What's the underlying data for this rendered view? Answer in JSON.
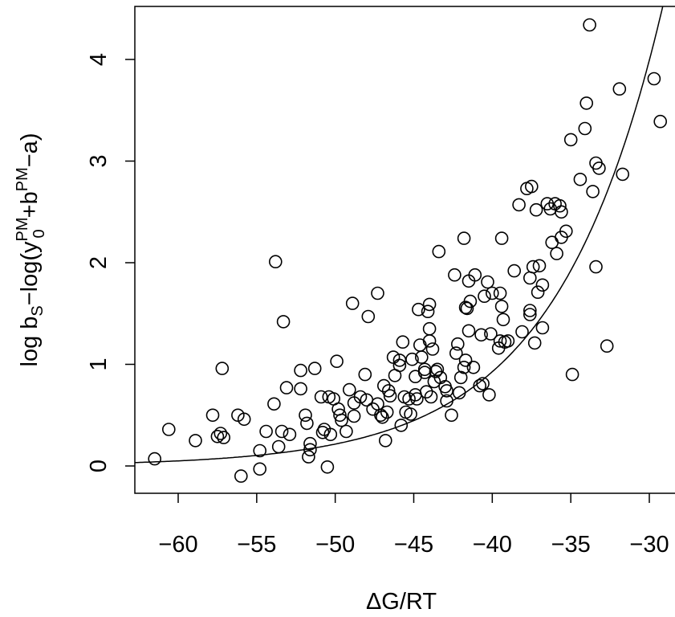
{
  "chart_data": {
    "type": "scatter",
    "xlabel": "ΔG/RT",
    "ylabel": {
      "base": "log b",
      "sub_s": "S",
      "minus": "−log(y",
      "sup_pm1": "PM",
      "sub_0": "0",
      "plus": "+b",
      "sup_pm2": "PM",
      "tail": "−a)"
    },
    "xlim": [
      -63.2,
      -28.1
    ],
    "ylim": [
      -0.27,
      4.5
    ],
    "x_ticks": [
      {
        "value": -60,
        "label": "−60"
      },
      {
        "value": -55,
        "label": "−55"
      },
      {
        "value": -50,
        "label": "−50"
      },
      {
        "value": -45,
        "label": "−45"
      },
      {
        "value": -40,
        "label": "−40"
      },
      {
        "value": -35,
        "label": "−35"
      },
      {
        "value": -30,
        "label": "−30"
      }
    ],
    "y_ticks": [
      {
        "value": 0,
        "label": "0"
      },
      {
        "value": 1,
        "label": "1"
      },
      {
        "value": 2,
        "label": "2"
      },
      {
        "value": 3,
        "label": "3"
      },
      {
        "value": 4,
        "label": "4"
      }
    ],
    "grid": false,
    "fit": {
      "type": "exponential",
      "a": 0.05,
      "b": 0.146,
      "x0": -60
    },
    "points": [
      [
        -61.5,
        0.07
      ],
      [
        -60.6,
        0.36
      ],
      [
        -58.9,
        0.25
      ],
      [
        -57.8,
        0.5
      ],
      [
        -57.5,
        0.29
      ],
      [
        -57.3,
        0.32
      ],
      [
        -57.2,
        0.96
      ],
      [
        -57.1,
        0.28
      ],
      [
        -56.2,
        0.5
      ],
      [
        -56.0,
        -0.1
      ],
      [
        -55.8,
        0.46
      ],
      [
        -54.8,
        0.15
      ],
      [
        -54.8,
        -0.03
      ],
      [
        -54.4,
        0.34
      ],
      [
        -53.9,
        0.61
      ],
      [
        -53.8,
        2.01
      ],
      [
        -53.6,
        0.19
      ],
      [
        -53.4,
        0.34
      ],
      [
        -53.3,
        1.42
      ],
      [
        -53.1,
        0.77
      ],
      [
        -52.9,
        0.31
      ],
      [
        -52.2,
        0.94
      ],
      [
        -52.2,
        0.76
      ],
      [
        -51.9,
        0.5
      ],
      [
        -51.8,
        0.42
      ],
      [
        -51.7,
        0.09
      ],
      [
        -51.6,
        0.22
      ],
      [
        -51.6,
        0.16
      ],
      [
        -51.3,
        0.96
      ],
      [
        -50.9,
        0.68
      ],
      [
        -50.8,
        0.33
      ],
      [
        -50.7,
        0.36
      ],
      [
        -50.5,
        -0.01
      ],
      [
        -50.4,
        0.68
      ],
      [
        -50.3,
        0.31
      ],
      [
        -50.1,
        0.66
      ],
      [
        -49.9,
        1.03
      ],
      [
        -49.8,
        0.56
      ],
      [
        -49.7,
        0.5
      ],
      [
        -49.6,
        0.45
      ],
      [
        -49.3,
        0.34
      ],
      [
        -49.1,
        0.75
      ],
      [
        -48.9,
        1.6
      ],
      [
        -48.8,
        0.49
      ],
      [
        -48.8,
        0.62
      ],
      [
        -48.4,
        0.68
      ],
      [
        -48.1,
        0.9
      ],
      [
        -48.0,
        0.65
      ],
      [
        -47.9,
        1.47
      ],
      [
        -47.6,
        0.56
      ],
      [
        -47.3,
        1.7
      ],
      [
        -47.3,
        0.61
      ],
      [
        -47.1,
        0.5
      ],
      [
        -47.0,
        0.48
      ],
      [
        -46.9,
        0.79
      ],
      [
        -46.8,
        0.25
      ],
      [
        -46.7,
        0.53
      ],
      [
        -46.6,
        0.74
      ],
      [
        -46.5,
        0.69
      ],
      [
        -46.3,
        1.07
      ],
      [
        -46.2,
        0.89
      ],
      [
        -45.9,
        1.04
      ],
      [
        -45.9,
        0.99
      ],
      [
        -45.8,
        0.4
      ],
      [
        -45.7,
        1.22
      ],
      [
        -45.6,
        0.68
      ],
      [
        -45.5,
        0.53
      ],
      [
        -45.3,
        0.66
      ],
      [
        -45.2,
        0.51
      ],
      [
        -45.1,
        1.05
      ],
      [
        -44.9,
        0.88
      ],
      [
        -44.9,
        0.7
      ],
      [
        -44.8,
        0.66
      ],
      [
        -44.7,
        1.54
      ],
      [
        -44.6,
        1.19
      ],
      [
        -44.5,
        1.07
      ],
      [
        -44.3,
        0.92
      ],
      [
        -44.3,
        0.95
      ],
      [
        -44.2,
        0.73
      ],
      [
        -44.1,
        1.52
      ],
      [
        -44.0,
        1.59
      ],
      [
        -44.0,
        1.35
      ],
      [
        -44.0,
        1.23
      ],
      [
        -43.9,
        0.68
      ],
      [
        -43.8,
        1.15
      ],
      [
        -43.7,
        0.83
      ],
      [
        -43.6,
        0.93
      ],
      [
        -43.5,
        0.95
      ],
      [
        -43.4,
        2.11
      ],
      [
        -43.3,
        0.87
      ],
      [
        -43.0,
        0.78
      ],
      [
        -42.9,
        0.74
      ],
      [
        -42.9,
        0.64
      ],
      [
        -42.6,
        0.5
      ],
      [
        -42.4,
        1.88
      ],
      [
        -42.3,
        1.11
      ],
      [
        -42.2,
        1.2
      ],
      [
        -42.1,
        0.72
      ],
      [
        -42.0,
        0.87
      ],
      [
        -41.8,
        2.24
      ],
      [
        -41.8,
        0.97
      ],
      [
        -41.7,
        1.56
      ],
      [
        -41.7,
        1.04
      ],
      [
        -41.6,
        1.55
      ],
      [
        -41.5,
        1.33
      ],
      [
        -41.5,
        1.82
      ],
      [
        -41.4,
        1.62
      ],
      [
        -41.2,
        0.97
      ],
      [
        -41.1,
        1.88
      ],
      [
        -40.8,
        0.79
      ],
      [
        -40.7,
        1.29
      ],
      [
        -40.6,
        0.81
      ],
      [
        -40.5,
        1.67
      ],
      [
        -40.3,
        1.81
      ],
      [
        -40.2,
        0.7
      ],
      [
        -40.1,
        1.3
      ],
      [
        -40.0,
        1.7
      ],
      [
        -39.6,
        1.16
      ],
      [
        -39.5,
        1.7
      ],
      [
        -39.5,
        1.23
      ],
      [
        -39.4,
        1.57
      ],
      [
        -39.4,
        2.24
      ],
      [
        -39.3,
        1.44
      ],
      [
        -39.2,
        1.22
      ],
      [
        -39.0,
        1.23
      ],
      [
        -38.6,
        1.92
      ],
      [
        -38.3,
        2.57
      ],
      [
        -38.1,
        1.32
      ],
      [
        -37.8,
        2.73
      ],
      [
        -37.6,
        1.49
      ],
      [
        -37.6,
        1.53
      ],
      [
        -37.6,
        1.85
      ],
      [
        -37.5,
        2.75
      ],
      [
        -37.4,
        1.96
      ],
      [
        -37.3,
        1.21
      ],
      [
        -37.2,
        2.52
      ],
      [
        -37.1,
        1.71
      ],
      [
        -37.0,
        1.97
      ],
      [
        -36.8,
        1.36
      ],
      [
        -36.8,
        1.78
      ],
      [
        -36.5,
        2.58
      ],
      [
        -36.3,
        2.53
      ],
      [
        -36.2,
        2.2
      ],
      [
        -36.0,
        2.58
      ],
      [
        -35.9,
        2.09
      ],
      [
        -35.7,
        2.56
      ],
      [
        -35.6,
        2.5
      ],
      [
        -35.6,
        2.25
      ],
      [
        -35.3,
        2.31
      ],
      [
        -35.0,
        3.21
      ],
      [
        -34.9,
        0.9
      ],
      [
        -34.4,
        2.82
      ],
      [
        -34.1,
        3.32
      ],
      [
        -34.0,
        3.57
      ],
      [
        -33.8,
        4.34
      ],
      [
        -33.6,
        2.7
      ],
      [
        -33.4,
        1.96
      ],
      [
        -33.4,
        2.98
      ],
      [
        -33.2,
        2.93
      ],
      [
        -32.7,
        1.18
      ],
      [
        -31.9,
        3.71
      ],
      [
        -31.7,
        2.87
      ],
      [
        -29.7,
        3.81
      ],
      [
        -29.3,
        3.39
      ]
    ]
  }
}
